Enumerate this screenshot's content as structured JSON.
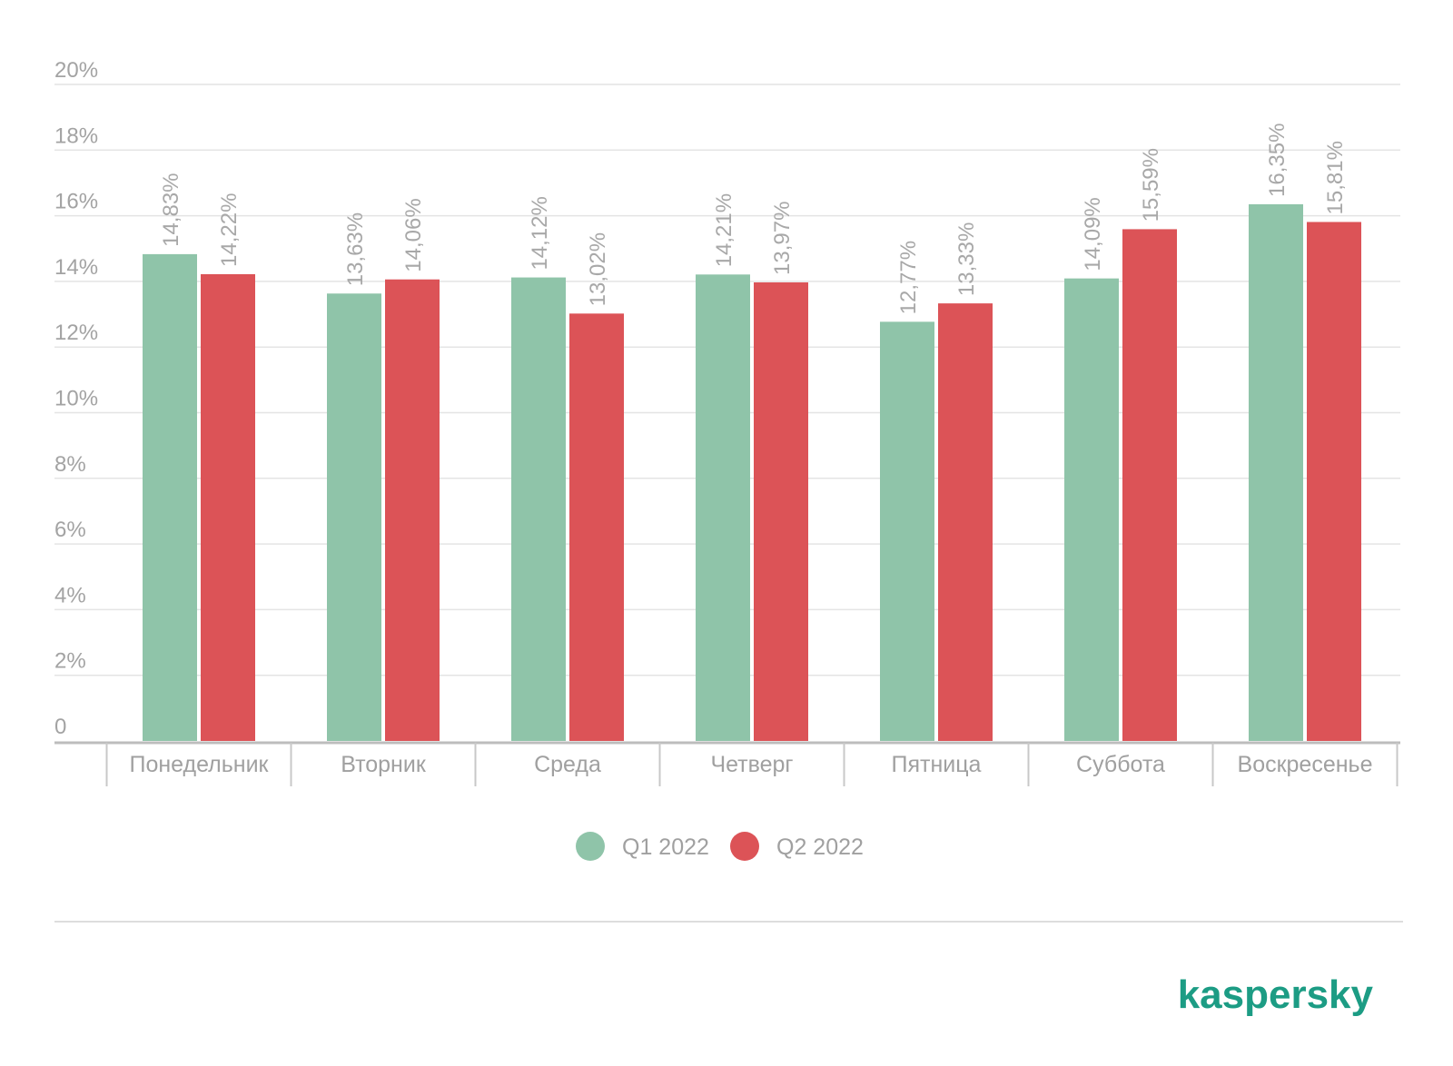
{
  "chart_data": {
    "type": "bar",
    "categories": [
      "Понедельник",
      "Вторник",
      "Среда",
      "Четверг",
      "Пятница",
      "Суббота",
      "Воскресенье"
    ],
    "series": [
      {
        "name": "Q1 2022",
        "color": "#8fc4a9",
        "values": [
          14.83,
          13.63,
          14.12,
          14.21,
          12.77,
          14.09,
          16.35
        ],
        "labels": [
          "14,83%",
          "13,63%",
          "14,12%",
          "14,21%",
          "12,77%",
          "14,09%",
          "16,35%"
        ]
      },
      {
        "name": "Q2 2022",
        "color": "#dc5357",
        "values": [
          14.22,
          14.06,
          13.02,
          13.97,
          13.33,
          15.59,
          15.81
        ],
        "labels": [
          "14,22%",
          "14,06%",
          "13,02%",
          "13,97%",
          "13,33%",
          "15,59%",
          "15,81%"
        ]
      }
    ],
    "ylim": [
      0,
      20
    ],
    "yticks": [
      {
        "value": 0,
        "label": "0"
      },
      {
        "value": 2,
        "label": "2%"
      },
      {
        "value": 4,
        "label": "4%"
      },
      {
        "value": 6,
        "label": "6%"
      },
      {
        "value": 8,
        "label": "8%"
      },
      {
        "value": 10,
        "label": "10%"
      },
      {
        "value": 12,
        "label": "12%"
      },
      {
        "value": 14,
        "label": "14%"
      },
      {
        "value": 16,
        "label": "16%"
      },
      {
        "value": 18,
        "label": "18%"
      },
      {
        "value": 20,
        "label": "20%"
      }
    ],
    "grid": true,
    "legend_position": "bottom-center"
  },
  "brand": {
    "logo_text": "kaspersky",
    "color": "#1c9c84"
  }
}
